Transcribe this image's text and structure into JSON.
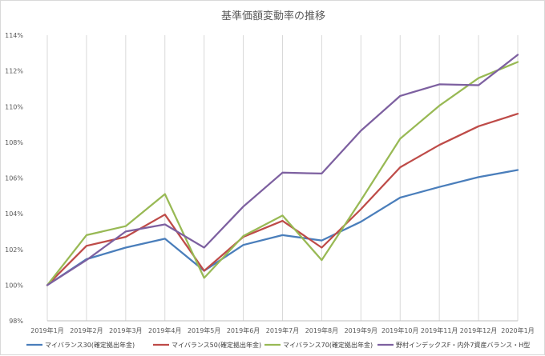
{
  "chart_data": {
    "type": "line",
    "title": "基準価額変動率の推移",
    "xlabel": "",
    "ylabel": "",
    "categories": [
      "2019年1月",
      "2019年2月",
      "2019年3月",
      "2019年4月",
      "2019年5月",
      "2019年6月",
      "2019年7月",
      "2019年8月",
      "2019年9月",
      "2019年10月",
      "2019年11月",
      "2019年12月",
      "2020年1月"
    ],
    "ylim": [
      98,
      114
    ],
    "yticks": [
      98,
      100,
      102,
      104,
      106,
      108,
      110,
      112,
      114
    ],
    "ytick_labels": [
      "98%",
      "100%",
      "102%",
      "104%",
      "106%",
      "108%",
      "110%",
      "112%",
      "114%"
    ],
    "grid": "vertical lines at categories",
    "legend_position": "bottom",
    "series": [
      {
        "name": "マイバランス30(確定拠出年金)",
        "color": "#4a7ebb",
        "values": [
          100.0,
          101.45,
          102.1,
          102.6,
          100.8,
          102.25,
          102.8,
          102.5,
          103.55,
          104.9,
          105.5,
          106.05,
          106.45
        ]
      },
      {
        "name": "マイバランス50(確定拠出年金)",
        "color": "#be4b48",
        "values": [
          100.0,
          102.2,
          102.7,
          103.95,
          100.8,
          102.7,
          103.6,
          102.1,
          104.25,
          106.6,
          107.85,
          108.9,
          109.6
        ]
      },
      {
        "name": "マイバランス70(確定拠出年金)",
        "color": "#98b954",
        "values": [
          100.0,
          102.8,
          103.3,
          105.1,
          100.4,
          102.75,
          103.9,
          101.4,
          104.75,
          108.2,
          110.05,
          111.6,
          112.5
        ]
      },
      {
        "name": "野村インデックスF・内外7資産バランス・H型",
        "color": "#7d60a0",
        "values": [
          100.0,
          101.4,
          103.0,
          103.4,
          102.1,
          104.4,
          106.3,
          106.25,
          108.65,
          110.6,
          111.25,
          111.2,
          112.9
        ]
      }
    ]
  }
}
